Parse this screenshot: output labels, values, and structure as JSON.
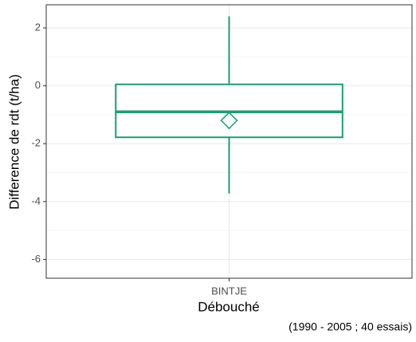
{
  "chart_data": {
    "type": "box",
    "x_label": "Débouché",
    "y_label": "Difference de rdt (t/ha)",
    "caption": "(1990 - 2005 ; 40 essais)",
    "categories": [
      "BINTJE"
    ],
    "boxes": [
      {
        "whislo": -3.72,
        "q1": -1.78,
        "med": -0.9,
        "q3": 0.05,
        "whishi": 2.4,
        "mean": -1.2
      }
    ],
    "color": "#1b9e77",
    "ylim": [
      -6.65,
      2.8
    ],
    "yticks": [
      -6,
      -4,
      -2,
      0,
      2
    ],
    "yminor": [
      -5,
      -3,
      -1,
      1
    ],
    "grid": true
  }
}
